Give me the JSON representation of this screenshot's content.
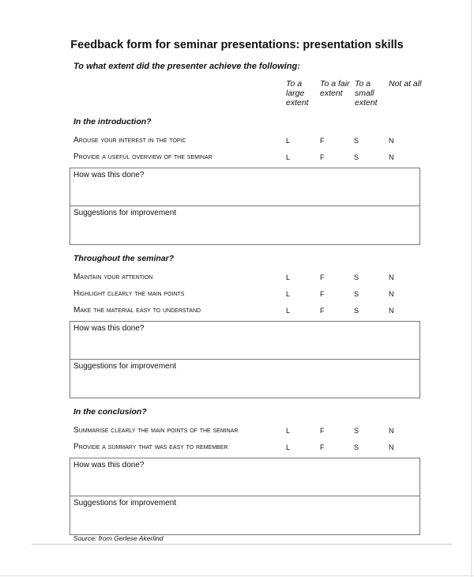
{
  "title": "Feedback form for seminar presentations: presentation skills",
  "subtitle": "To what extent did the presenter achieve the following:",
  "columns": [
    "To a large extent",
    "To a fair extent",
    "To a small extent",
    "Not at all"
  ],
  "options": [
    "L",
    "F",
    "S",
    "N"
  ],
  "sections": [
    {
      "heading": "In the introduction?",
      "items": [
        "Arouse your interest in the topic",
        "Provide a useful overview of the seminar"
      ],
      "box_labels": [
        "How was this done?",
        "Suggestions for improvement"
      ]
    },
    {
      "heading": "Throughout the seminar?",
      "items": [
        "Maintain your attention",
        "Highlight clearly the main points",
        "Make the material easy to understand"
      ],
      "box_labels": [
        "How was this done?",
        "Suggestions for improvement"
      ]
    },
    {
      "heading": "In the conclusion?",
      "items": [
        "Summarise clearly the main points of the seminar",
        "Provide a summary that was easy to remember"
      ],
      "box_labels": [
        "How was this done?",
        "Suggestions for improvement"
      ]
    }
  ],
  "source": "Source: from Gerlese Akerlind"
}
